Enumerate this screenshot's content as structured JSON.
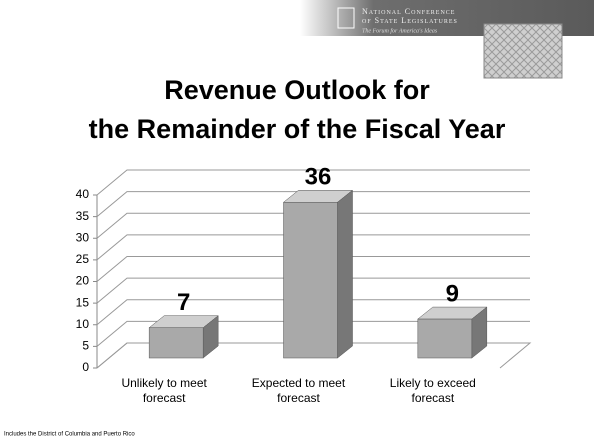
{
  "header": {
    "org_line1": "National Conference",
    "org_line2": "of State Legislatures",
    "tagline": "The Forum for America's Ideas"
  },
  "chart_data": {
    "type": "bar3d",
    "title": [
      "Revenue Outlook for",
      "the Remainder of the Fiscal Year"
    ],
    "categories": [
      "Unlikely to meet forecast",
      "Expected to meet forecast",
      "Likely to exceed forecast"
    ],
    "values": [
      7,
      36,
      9
    ],
    "color": "#a9a9a9",
    "ylim": [
      0,
      40
    ],
    "yticks": [
      0,
      5,
      10,
      15,
      20,
      25,
      30,
      35,
      40
    ],
    "grid": true,
    "note": "Includes the District of Columbia and Puerto Rico"
  }
}
